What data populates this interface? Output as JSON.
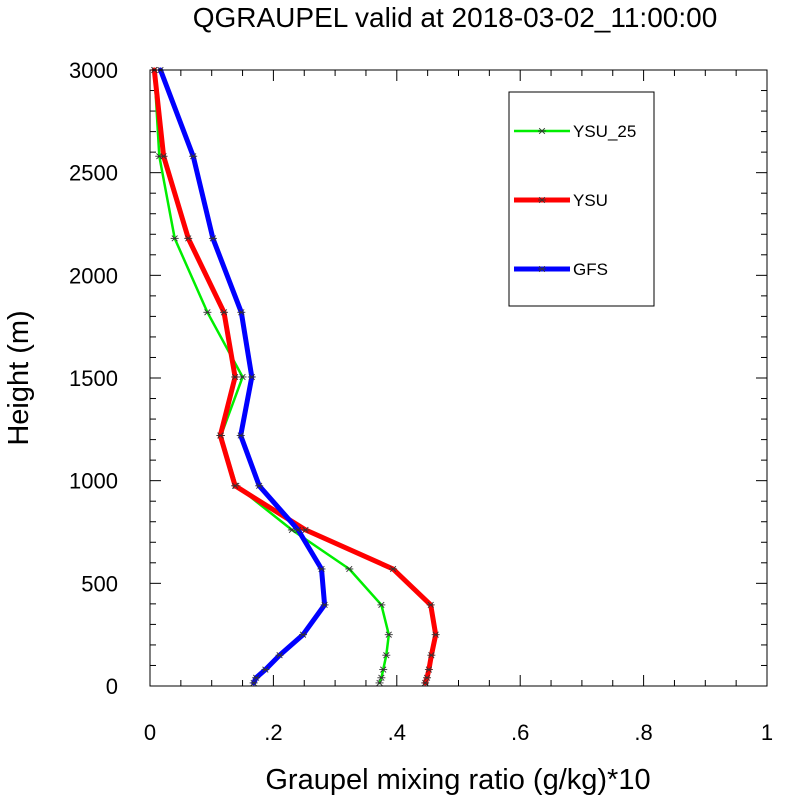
{
  "chart_data": {
    "type": "line",
    "title": "QGRAUPEL valid at 2018-03-02_11:00:00",
    "xlabel": "Graupel mixing ratio (g/kg)*10",
    "ylabel": "Height (m)",
    "xlim": [
      0,
      1
    ],
    "ylim": [
      0,
      3000
    ],
    "x_ticks": [
      0,
      0.2,
      0.4,
      0.6,
      0.8,
      1.0
    ],
    "x_tick_labels": [
      "0",
      ".2",
      ".4",
      ".6",
      ".8",
      "1"
    ],
    "y_ticks": [
      0,
      500,
      1000,
      1500,
      2000,
      2500,
      3000
    ],
    "y_tick_labels": [
      "0",
      "500",
      "1000",
      "1500",
      "2000",
      "2500",
      "3000"
    ],
    "grid": false,
    "legend_position": "top-right",
    "series": [
      {
        "name": "YSU_25",
        "color": "#00ee00",
        "marker": "asterisk",
        "points": [
          [
            0.372,
            15
          ],
          [
            0.375,
            40
          ],
          [
            0.378,
            80
          ],
          [
            0.383,
            150
          ],
          [
            0.387,
            250
          ],
          [
            0.375,
            395
          ],
          [
            0.323,
            570
          ],
          [
            0.23,
            760
          ],
          [
            0.14,
            975
          ],
          [
            0.115,
            1220
          ],
          [
            0.15,
            1505
          ],
          [
            0.093,
            1820
          ],
          [
            0.04,
            2180
          ],
          [
            0.015,
            2580
          ],
          [
            0.007,
            3000
          ]
        ]
      },
      {
        "name": "YSU",
        "color": "#ff0000",
        "marker": "asterisk",
        "points": [
          [
            0.446,
            15
          ],
          [
            0.449,
            40
          ],
          [
            0.452,
            80
          ],
          [
            0.456,
            150
          ],
          [
            0.463,
            250
          ],
          [
            0.455,
            395
          ],
          [
            0.394,
            570
          ],
          [
            0.252,
            760
          ],
          [
            0.138,
            975
          ],
          [
            0.114,
            1220
          ],
          [
            0.138,
            1505
          ],
          [
            0.12,
            1820
          ],
          [
            0.062,
            2180
          ],
          [
            0.022,
            2580
          ],
          [
            0.007,
            3000
          ]
        ]
      },
      {
        "name": "GFS",
        "color": "#0000ff",
        "marker": "asterisk",
        "points": [
          [
            0.168,
            15
          ],
          [
            0.172,
            40
          ],
          [
            0.187,
            80
          ],
          [
            0.21,
            150
          ],
          [
            0.248,
            250
          ],
          [
            0.283,
            395
          ],
          [
            0.278,
            570
          ],
          [
            0.24,
            760
          ],
          [
            0.177,
            975
          ],
          [
            0.147,
            1220
          ],
          [
            0.165,
            1505
          ],
          [
            0.148,
            1820
          ],
          [
            0.102,
            2180
          ],
          [
            0.07,
            2580
          ],
          [
            0.017,
            3000
          ]
        ]
      }
    ]
  }
}
